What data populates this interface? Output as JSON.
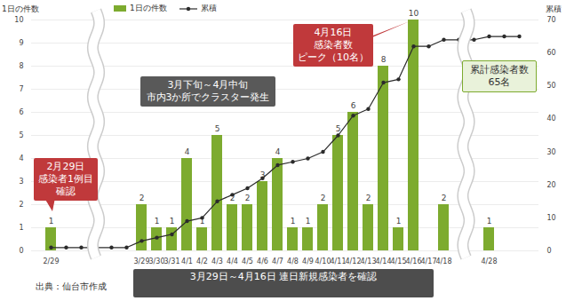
{
  "chart_data": {
    "type": "bar",
    "categories": [
      "2/29",
      null,
      null,
      null,
      null,
      null,
      "3/29",
      "3/30",
      "3/31",
      "4/1",
      "4/2",
      "4/3",
      "4/4",
      "4/5",
      "4/6",
      "4/7",
      "4/8",
      "4/9",
      "4/10",
      "4/11",
      "4/12",
      "4/13",
      "4/14",
      "4/15",
      "4/16",
      "4/17",
      "4/18",
      null,
      null,
      "4/28",
      null,
      null
    ],
    "series": [
      {
        "name": "1日の件数",
        "type": "bar",
        "color": "#7dab2f",
        "values": [
          1,
          null,
          null,
          null,
          null,
          null,
          2,
          1,
          1,
          4,
          1,
          5,
          2,
          2,
          3,
          4,
          1,
          1,
          2,
          5,
          6,
          2,
          8,
          1,
          10,
          null,
          2,
          null,
          null,
          1,
          null,
          null
        ]
      },
      {
        "name": "累積",
        "type": "line",
        "axis": "y2",
        "color": "#2b2b2b",
        "marker": "circle",
        "values": [
          1,
          1,
          1,
          1,
          1,
          1,
          3,
          4,
          5,
          9,
          10,
          15,
          17,
          19,
          22,
          26,
          27,
          28,
          30,
          35,
          41,
          43,
          51,
          52,
          62,
          62,
          64,
          64,
          64,
          65,
          65,
          65
        ]
      }
    ],
    "ylabel": "1日の件数",
    "y2label": "累積",
    "ylim": [
      0,
      10
    ],
    "yticks": [
      0,
      1,
      2,
      3,
      4,
      5,
      6,
      7,
      8,
      9,
      10
    ],
    "y2lim": [
      0,
      70
    ],
    "y2ticks": [
      0,
      10,
      20,
      30,
      40,
      50,
      60,
      70
    ],
    "grid": true,
    "legend": "top",
    "data_labels": true,
    "annotations": [
      {
        "text": "2月29日\n感染者1例目\n確認",
        "color": "#c0393b"
      },
      {
        "text": "4月16日\n感染者数\nピーク（10名）",
        "color": "#c0393b"
      },
      {
        "text": "3月下旬～4月中旬\n市内3か所でクラスター発生",
        "color": "#595959"
      },
      {
        "text": "累計感染者数\n65名",
        "color": "#e9f2da"
      },
      {
        "text": "3月29日～4月16日 連日新規感染者を確認",
        "color": "#4d4d4d"
      }
    ],
    "source": "出典：仙台市作成"
  }
}
